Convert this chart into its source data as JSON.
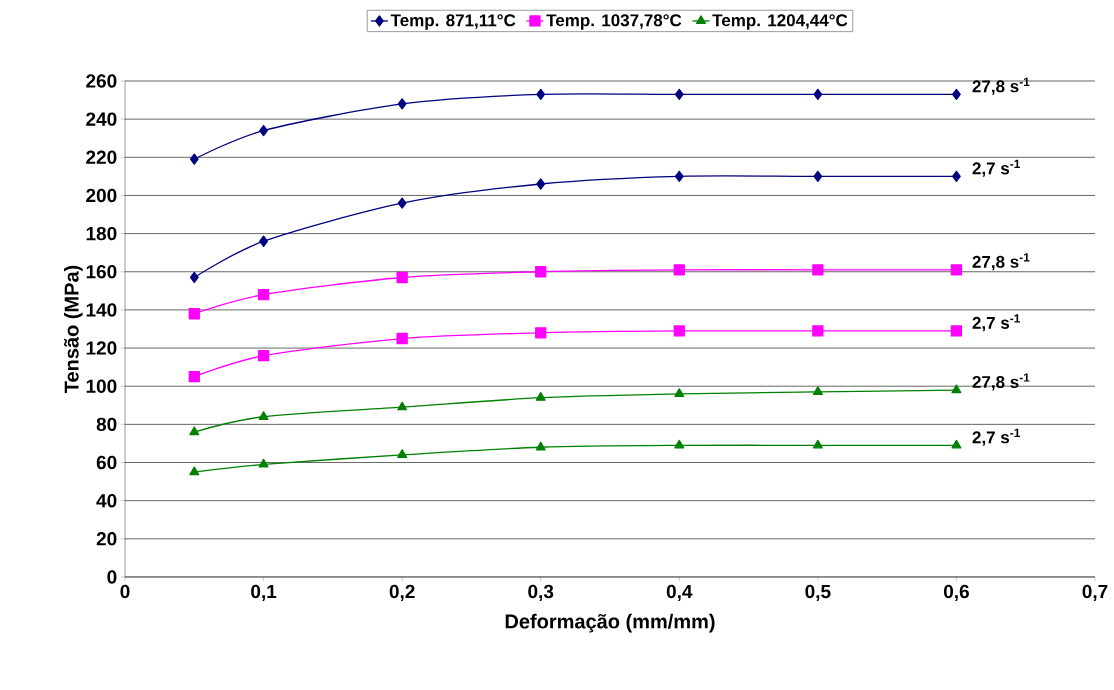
{
  "chart_data": {
    "type": "line",
    "xlabel": "Deformação (mm/mm)",
    "ylabel": "Tensão (MPa)",
    "x": [
      0.05,
      0.1,
      0.2,
      0.3,
      0.4,
      0.5,
      0.6
    ],
    "series": [
      {
        "name": "Temp. 871,11°C",
        "color": "#000080",
        "marker": "diamond",
        "values": [
          219,
          234,
          248,
          253,
          253,
          253,
          253
        ]
      },
      {
        "color": "#000080",
        "marker": "diamond",
        "values": [
          157,
          176,
          196,
          206,
          210,
          210,
          210
        ]
      },
      {
        "name": "Temp. 1037,78°C",
        "color": "#ff00ff",
        "marker": "square",
        "values": [
          138,
          148,
          157,
          160,
          161,
          161,
          161
        ]
      },
      {
        "color": "#ff00ff",
        "marker": "square",
        "values": [
          105,
          116,
          125,
          128,
          129,
          129,
          129
        ]
      },
      {
        "name": "Temp. 1204,44°C",
        "color": "#008000",
        "marker": "triangle",
        "values": [
          76,
          84,
          89,
          94,
          96,
          97,
          98
        ]
      },
      {
        "color": "#008000",
        "marker": "triangle",
        "values": [
          55,
          59,
          64,
          68,
          69,
          69,
          69
        ]
      }
    ],
    "annotations": [
      "27,8 s$^{-1}$",
      "2,7 s$^{-1}$",
      "27,8 s$^{-1}$",
      "2,7 s$^{-1}$",
      "27,8 s$^{-1}$",
      "2,7 s$^{-1}$"
    ],
    "xlim": [
      0,
      0.7
    ],
    "xticks": [
      0,
      {
        "value": 0.1,
        "label": "0,1"
      },
      {
        "value": 0.2,
        "label": "0,2"
      },
      {
        "value": 0.3,
        "label": "0,3"
      },
      {
        "value": 0.4,
        "label": "0,4"
      },
      {
        "value": 0.5,
        "label": "0,5"
      },
      {
        "value": 0.6,
        "label": "0,6"
      },
      {
        "value": 0.7,
        "label": "0,7"
      }
    ],
    "ylim": [
      0,
      260
    ],
    "yticks": [
      0,
      20,
      40,
      60,
      80,
      100,
      120,
      140,
      160,
      180,
      200,
      220,
      240,
      260
    ],
    "grid": "y",
    "legend": "top",
    "line_style": "solid"
  }
}
